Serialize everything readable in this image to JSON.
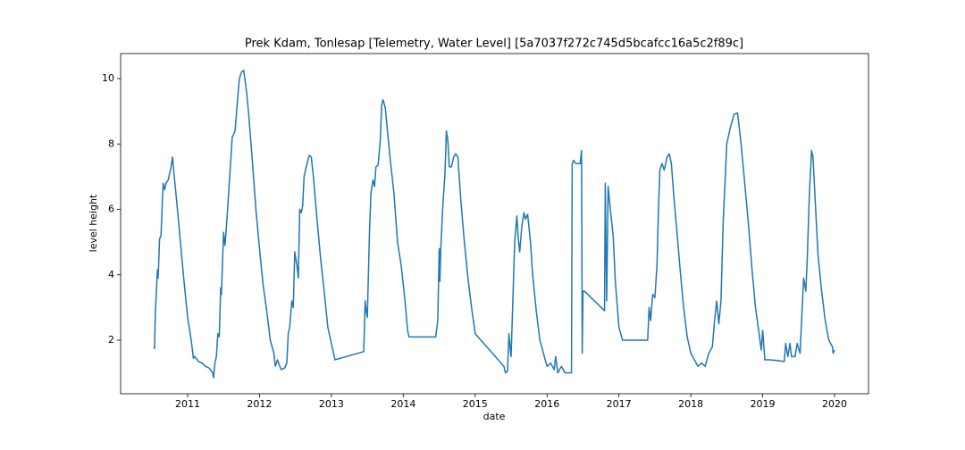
{
  "chart_data": {
    "type": "line",
    "title": "Prek Kdam, Tonlesap [Telemetry, Water Level] [5a7037f272c745d5bcafcc16a5c2f89c]",
    "xlabel": "date",
    "ylabel": "level height",
    "color": "#1f77b4",
    "xlim": [
      2010.068,
      2020.472
    ],
    "xticks": [
      2011,
      2012,
      2013,
      2014,
      2015,
      2016,
      2017,
      2018,
      2019,
      2020
    ],
    "ylim": [
      0.362,
      10.765
    ],
    "yticks": [
      2,
      4,
      6,
      8,
      10
    ],
    "x": [
      2010.53,
      2010.54,
      2010.55,
      2010.57,
      2010.58,
      2010.59,
      2010.61,
      2010.63,
      2010.65,
      2010.66,
      2010.68,
      2010.7,
      2010.73,
      2010.77,
      2010.79,
      2010.81,
      2010.85,
      2010.9,
      2010.95,
      2011.0,
      2011.05,
      2011.08,
      2011.1,
      2011.15,
      2011.2,
      2011.25,
      2011.3,
      2011.35,
      2011.36,
      2011.38,
      2011.4,
      2011.42,
      2011.44,
      2011.46,
      2011.47,
      2011.5,
      2011.52,
      2011.55,
      2011.6,
      2011.62,
      2011.66,
      2011.7,
      2011.72,
      2011.75,
      2011.78,
      2011.82,
      2011.85,
      2011.9,
      2011.95,
      2012.0,
      2012.05,
      2012.1,
      2012.15,
      2012.2,
      2012.22,
      2012.25,
      2012.3,
      2012.35,
      2012.38,
      2012.4,
      2012.42,
      2012.45,
      2012.47,
      2012.49,
      2012.52,
      2012.54,
      2012.56,
      2012.58,
      2012.6,
      2012.62,
      2012.65,
      2012.69,
      2012.72,
      2012.75,
      2012.8,
      2012.85,
      2012.9,
      2012.95,
      2013.0,
      2013.05,
      2013.45,
      2013.47,
      2013.49,
      2013.5,
      2013.53,
      2013.55,
      2013.58,
      2013.6,
      2013.62,
      2013.65,
      2013.68,
      2013.7,
      2013.72,
      2013.75,
      2013.78,
      2013.82,
      2013.87,
      2013.92,
      2013.97,
      2014.02,
      2014.06,
      2014.08,
      2014.45,
      2014.48,
      2014.5,
      2014.51,
      2014.52,
      2014.55,
      2014.58,
      2014.6,
      2014.62,
      2014.64,
      2014.67,
      2014.7,
      2014.73,
      2014.76,
      2014.8,
      2014.85,
      2014.9,
      2014.95,
      2015.0,
      2015.4,
      2015.42,
      2015.45,
      2015.47,
      2015.49,
      2015.5,
      2015.53,
      2015.55,
      2015.58,
      2015.6,
      2015.62,
      2015.65,
      2015.68,
      2015.7,
      2015.73,
      2015.77,
      2015.8,
      2015.85,
      2015.9,
      2015.95,
      2016.0,
      2016.05,
      2016.1,
      2016.12,
      2016.15,
      2016.2,
      2016.25,
      2016.34,
      2016.35,
      2016.37,
      2016.4,
      2016.46,
      2016.48,
      2016.49,
      2016.5,
      2016.52,
      2016.8,
      2016.81,
      2016.83,
      2016.85,
      2016.88,
      2016.92,
      2016.95,
      2017.0,
      2017.05,
      2017.4,
      2017.42,
      2017.44,
      2017.47,
      2017.5,
      2017.53,
      2017.55,
      2017.57,
      2017.6,
      2017.63,
      2017.67,
      2017.7,
      2017.73,
      2017.76,
      2017.8,
      2017.85,
      2017.9,
      2017.95,
      2018.0,
      2018.05,
      2018.1,
      2018.15,
      2018.2,
      2018.25,
      2018.3,
      2018.33,
      2018.36,
      2018.39,
      2018.42,
      2018.45,
      2018.48,
      2018.5,
      2018.55,
      2018.6,
      2018.65,
      2018.7,
      2018.75,
      2018.8,
      2018.85,
      2018.9,
      2018.95,
      2018.98,
      2019.0,
      2019.03,
      2019.1,
      2019.2,
      2019.3,
      2019.32,
      2019.35,
      2019.38,
      2019.4,
      2019.45,
      2019.48,
      2019.52,
      2019.55,
      2019.57,
      2019.6,
      2019.62,
      2019.65,
      2019.68,
      2019.7,
      2019.73,
      2019.77,
      2019.82,
      2019.87,
      2019.92,
      2019.97,
      2019.98,
      2020.0
    ],
    "values": [
      1.8,
      1.75,
      2.8,
      3.7,
      4.15,
      3.9,
      5.1,
      5.2,
      6.3,
      6.8,
      6.6,
      6.8,
      6.9,
      7.3,
      7.6,
      7.1,
      6.2,
      5.0,
      3.8,
      2.7,
      2.0,
      1.45,
      1.5,
      1.35,
      1.3,
      1.2,
      1.15,
      1.0,
      0.85,
      1.3,
      1.5,
      2.2,
      2.1,
      3.6,
      3.4,
      5.3,
      4.9,
      5.8,
      7.5,
      8.2,
      8.4,
      9.5,
      10.0,
      10.2,
      10.25,
      9.6,
      8.9,
      7.5,
      6.0,
      4.8,
      3.7,
      2.9,
      2.0,
      1.6,
      1.2,
      1.4,
      1.1,
      1.15,
      1.3,
      2.2,
      2.4,
      3.2,
      3.0,
      4.7,
      4.3,
      3.9,
      6.0,
      5.9,
      6.1,
      7.0,
      7.3,
      7.65,
      7.6,
      7.0,
      5.7,
      4.5,
      3.5,
      2.4,
      1.9,
      1.4,
      1.65,
      3.2,
      2.8,
      2.7,
      5.3,
      6.5,
      6.9,
      6.7,
      7.3,
      7.35,
      8.1,
      9.2,
      9.35,
      9.1,
      8.4,
      7.5,
      6.5,
      5.0,
      4.3,
      3.3,
      2.3,
      2.1,
      2.1,
      2.6,
      4.8,
      3.8,
      4.7,
      6.1,
      7.1,
      8.4,
      8.1,
      7.3,
      7.3,
      7.6,
      7.7,
      7.6,
      6.3,
      5.0,
      3.9,
      3.0,
      2.2,
      1.2,
      1.0,
      1.05,
      2.2,
      1.7,
      1.5,
      3.6,
      5.0,
      5.8,
      5.1,
      4.7,
      5.5,
      5.9,
      5.7,
      5.85,
      5.0,
      4.0,
      2.9,
      2.0,
      1.6,
      1.2,
      1.3,
      1.1,
      1.5,
      1.0,
      1.2,
      1.0,
      1.0,
      7.4,
      7.5,
      7.4,
      7.4,
      7.8,
      1.6,
      3.5,
      3.5,
      2.9,
      6.8,
      3.2,
      6.7,
      6.0,
      5.2,
      3.8,
      2.4,
      2.0,
      2.0,
      3.0,
      2.6,
      3.4,
      3.3,
      4.3,
      6.0,
      7.2,
      7.4,
      7.2,
      7.6,
      7.7,
      7.4,
      6.5,
      5.5,
      4.2,
      3.0,
      2.1,
      1.6,
      1.4,
      1.2,
      1.3,
      1.2,
      1.6,
      1.8,
      2.6,
      3.2,
      2.5,
      3.2,
      5.6,
      7.0,
      8.0,
      8.5,
      8.9,
      8.95,
      8.0,
      6.8,
      5.6,
      4.2,
      3.0,
      2.2,
      1.7,
      2.3,
      1.4,
      1.4,
      1.38,
      1.35,
      1.9,
      1.5,
      1.9,
      1.5,
      1.5,
      1.9,
      1.6,
      3.0,
      3.9,
      3.5,
      4.5,
      6.5,
      7.8,
      7.6,
      6.3,
      4.6,
      3.5,
      2.6,
      2.0,
      1.8,
      1.6,
      1.7
    ]
  }
}
